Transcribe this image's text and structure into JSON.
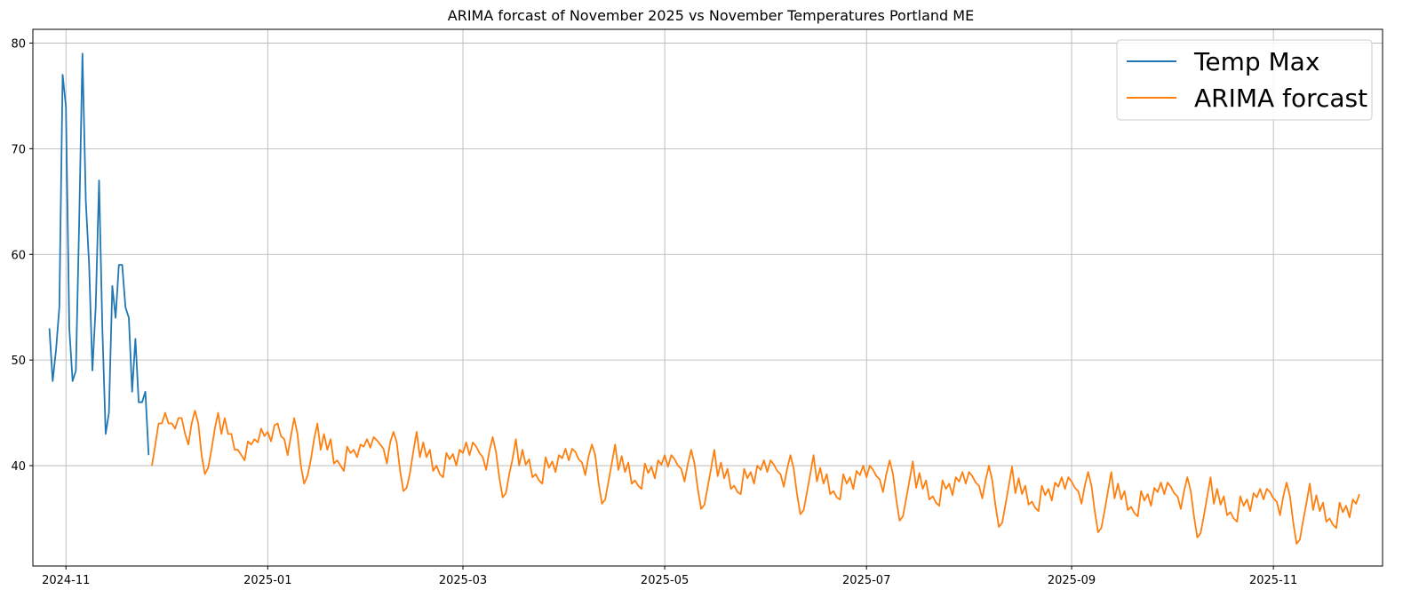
{
  "chart_data": {
    "type": "line",
    "title": "ARIMA forcast of November 2025 vs November Temperatures Portland ME",
    "xlabel": "",
    "ylabel": "",
    "xlim": [
      "2024-10-22",
      "2025-12-04"
    ],
    "ylim": [
      30.5,
      81.3
    ],
    "x_ticks": [
      "2024-11",
      "2025-01",
      "2025-03",
      "2025-05",
      "2025-07",
      "2025-09",
      "2025-11"
    ],
    "y_ticks": [
      40,
      50,
      60,
      70,
      80
    ],
    "grid": true,
    "legend_position": "top-right",
    "series": [
      {
        "name": "Temp Max",
        "color": "#1f77b4",
        "x": [
          "2024-10-27",
          "2024-10-28",
          "2024-10-29",
          "2024-10-30",
          "2024-10-31",
          "2024-11-01",
          "2024-11-02",
          "2024-11-03",
          "2024-11-04",
          "2024-11-05",
          "2024-11-06",
          "2024-11-07",
          "2024-11-08",
          "2024-11-09",
          "2024-11-10",
          "2024-11-11",
          "2024-11-12",
          "2024-11-13",
          "2024-11-14",
          "2024-11-15",
          "2024-11-16",
          "2024-11-17",
          "2024-11-18",
          "2024-11-19",
          "2024-11-20",
          "2024-11-21",
          "2024-11-22",
          "2024-11-23",
          "2024-11-24",
          "2024-11-25",
          "2024-11-26"
        ],
        "values": [
          53,
          48,
          51,
          55,
          77,
          74,
          53,
          48,
          49,
          63,
          79,
          65,
          59,
          49,
          55,
          67,
          53,
          43,
          45,
          57,
          54,
          59,
          59,
          55,
          54,
          47,
          52,
          46,
          46,
          47,
          41
        ]
      },
      {
        "name": "ARIMA forcast",
        "color": "#ff7f0e",
        "x_start": "2024-11-27",
        "x_step_days": 1,
        "values": [
          40,
          42,
          44,
          44,
          45,
          44,
          44,
          43.5,
          44.5,
          44.5,
          43,
          42,
          44,
          45.2,
          44,
          41,
          39.2,
          39.8,
          41.5,
          43.5,
          45,
          43,
          44.5,
          43,
          43,
          41.5,
          41.5,
          41,
          40.5,
          42.3,
          42,
          42.5,
          42.2,
          43.5,
          42.8,
          43.2,
          42.3,
          43.8,
          44,
          42.8,
          42.5,
          41,
          42.8,
          44.5,
          43,
          40,
          38.3,
          39,
          40.5,
          42.5,
          44,
          41.5,
          43,
          41.5,
          42.5,
          40.2,
          40.5,
          40,
          39.5,
          41.8,
          41.2,
          41.5,
          40.8,
          42,
          41.8,
          42.5,
          41.7,
          42.7,
          42.4,
          42,
          41.6,
          40.2,
          42.2,
          43.2,
          42.2,
          39.5,
          37.6,
          37.9,
          39.3,
          41.3,
          43.2,
          40.8,
          42.2,
          40.8,
          41.5,
          39.5,
          40,
          39.2,
          38.9,
          41.2,
          40.6,
          41.1,
          40,
          41.5,
          41.2,
          42.2,
          41,
          42.2,
          41.8,
          41.2,
          40.8,
          39.6,
          41.4,
          42.7,
          41.3,
          38.9,
          37,
          37.4,
          39.2,
          40.6,
          42.5,
          40,
          41.5,
          40.1,
          40.6,
          38.9,
          39.2,
          38.6,
          38.3,
          40.8,
          39.8,
          40.4,
          39.4,
          41,
          40.7,
          41.6,
          40.5,
          41.6,
          41.3,
          40.6,
          40.3,
          39.1,
          40.9,
          42,
          41,
          38.4,
          36.4,
          36.8,
          38.5,
          40.2,
          42,
          39.6,
          40.9,
          39.4,
          40.3,
          38.3,
          38.6,
          38.1,
          37.8,
          40.2,
          39.3,
          39.9,
          38.8,
          40.5,
          40.1,
          41,
          39.9,
          41,
          40.6,
          40,
          39.7,
          38.5,
          40.2,
          41.5,
          40.2,
          37.8,
          35.9,
          36.3,
          38,
          39.7,
          41.5,
          39,
          40.3,
          38.8,
          39.7,
          37.8,
          38.1,
          37.5,
          37.3,
          39.7,
          38.8,
          39.4,
          38.3,
          40,
          39.6,
          40.5,
          39.4,
          40.5,
          40.1,
          39.5,
          39.2,
          38,
          39.7,
          41,
          39.7,
          37.3,
          35.4,
          35.8,
          37.5,
          39.2,
          41,
          38.5,
          39.8,
          38.3,
          39.2,
          37.3,
          37.6,
          37,
          36.8,
          39.2,
          38.3,
          38.9,
          37.8,
          39.5,
          39.1,
          40,
          38.9,
          40,
          39.6,
          39,
          38.7,
          37.5,
          39.2,
          40.5,
          39.2,
          36.8,
          34.8,
          35.2,
          36.9,
          38.6,
          40.4,
          37.9,
          39.3,
          37.8,
          38.6,
          36.8,
          37.1,
          36.5,
          36.2,
          38.6,
          37.8,
          38.3,
          37.2,
          38.9,
          38.5,
          39.4,
          38.3,
          39.4,
          39,
          38.4,
          38.1,
          36.9,
          38.6,
          40,
          38.6,
          36.2,
          34.2,
          34.6,
          36.3,
          38.1,
          39.9,
          37.4,
          38.8,
          37.3,
          38.1,
          36.3,
          36.6,
          36,
          35.7,
          38.1,
          37.2,
          37.8,
          36.7,
          38.4,
          38,
          38.9,
          37.8,
          38.9,
          38.5,
          37.9,
          37.6,
          36.4,
          38.1,
          39.4,
          38.1,
          35.7,
          33.7,
          34.1,
          35.8,
          37.6,
          39.4,
          36.9,
          38.3,
          36.8,
          37.6,
          35.8,
          36.1,
          35.5,
          35.2,
          37.6,
          36.7,
          37.3,
          36.2,
          37.9,
          37.5,
          38.4,
          37.3,
          38.4,
          38,
          37.4,
          37.1,
          35.9,
          37.6,
          38.9,
          37.6,
          35.2,
          33.2,
          33.6,
          35.3,
          37.1,
          38.9,
          36.4,
          37.8,
          36.3,
          37.1,
          35.3,
          35.6,
          35,
          34.7,
          37.1,
          36.2,
          36.8,
          35.7,
          37.4,
          37,
          37.8,
          36.8,
          37.8,
          37.5,
          36.9,
          36.6,
          35.3,
          37.1,
          38.4,
          37.1,
          34.6,
          32.6,
          33,
          34.8,
          36.5,
          38.3,
          35.8,
          37.2,
          35.7,
          36.5,
          34.7,
          35,
          34.4,
          34.1,
          36.5,
          35.6,
          36.2,
          35.1,
          36.8,
          36.4,
          37.3
        ]
      }
    ]
  }
}
